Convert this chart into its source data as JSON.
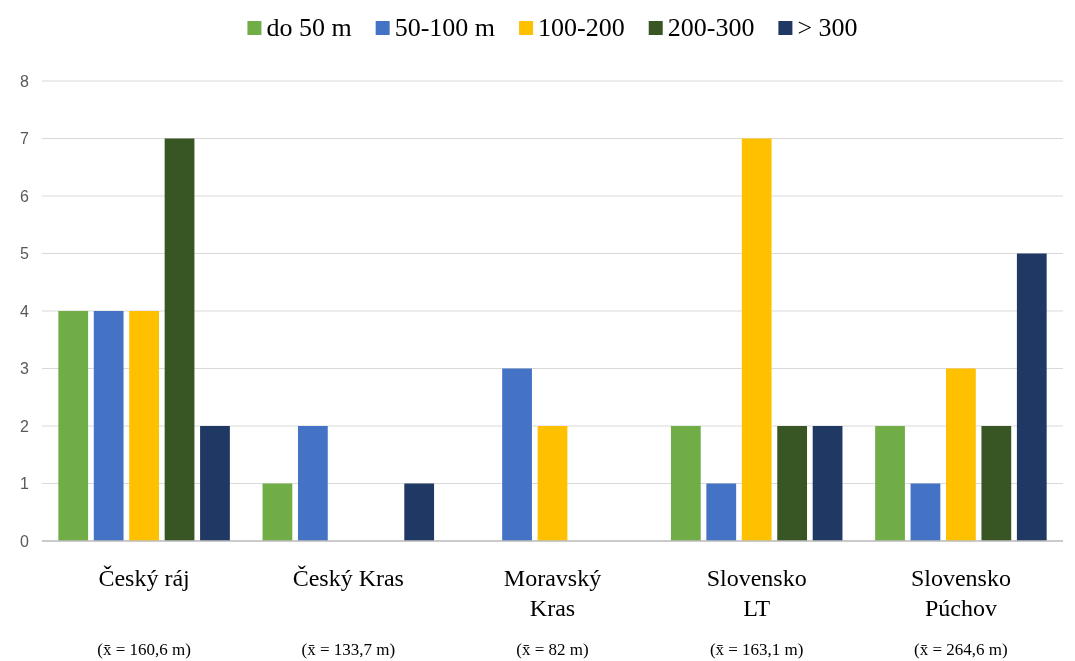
{
  "chart_data": {
    "type": "bar",
    "categories": [
      "Český ráj",
      "Český Kras",
      "Moravský Kras",
      "Slovensko LT",
      "Slovensko Púchov"
    ],
    "series": [
      {
        "name": "do 50 m",
        "color": "#70ad47",
        "values": [
          4,
          1,
          0,
          2,
          2
        ]
      },
      {
        "name": "50-100 m",
        "color": "#4472c4",
        "values": [
          4,
          2,
          3,
          1,
          1
        ]
      },
      {
        "name": "100-200",
        "color": "#ffc000",
        "values": [
          4,
          0,
          2,
          7,
          3
        ]
      },
      {
        "name": "200-300",
        "color": "#375623",
        "values": [
          7,
          0,
          0,
          2,
          2
        ]
      },
      {
        "name": "> 300",
        "color": "#203864",
        "values": [
          2,
          1,
          0,
          2,
          5
        ]
      }
    ],
    "ylim": [
      0,
      8
    ],
    "yticks": [
      0,
      1,
      2,
      3,
      4,
      5,
      6,
      7,
      8
    ],
    "grid": "y",
    "legend": "top",
    "annotations": [
      "(x̄ = 160,6 m)",
      "(x̄ = 133,7 m)",
      "(x̄ = 82 m)",
      "(x̄ = 163,1 m)",
      "(x̄ = 264,6 m)"
    ]
  }
}
